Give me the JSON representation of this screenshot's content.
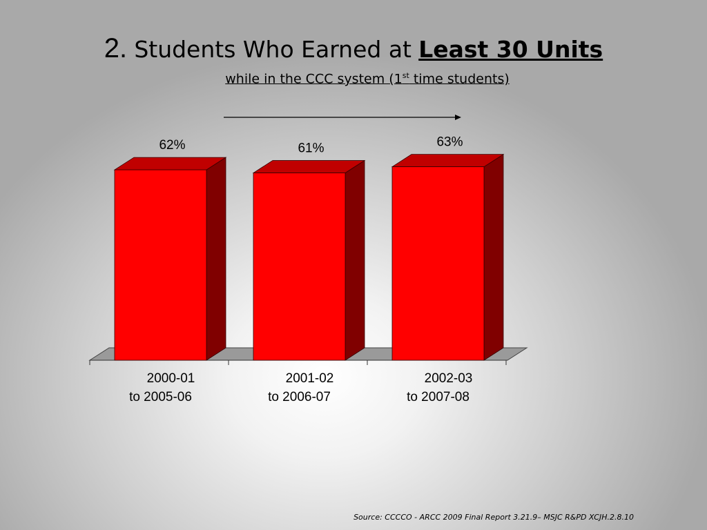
{
  "title": {
    "number": "2.",
    "text": "Students Who Earned at",
    "emphasis": "Least 30 Units"
  },
  "subtitle": {
    "before_sup": "while in the CCC system (1",
    "sup": "st",
    "after_sup": " time students)"
  },
  "source": "Source: CCCCO - ARCC 2009 Final Report 3.21.9– MSJC R&PD XCJH.2.8.10",
  "colors": {
    "bar_front": "#ff0000",
    "bar_side": "#800000",
    "bar_top": "#c00000",
    "floor": "#9a9a9a"
  },
  "chart_data": {
    "type": "bar",
    "categories": [
      [
        "2000-01",
        "to 2005-06"
      ],
      [
        "2001-02",
        "to 2006-07"
      ],
      [
        "2002-03",
        "to 2007-08"
      ]
    ],
    "values": [
      62,
      61,
      63
    ],
    "value_labels": [
      "62%",
      "61%",
      "63%"
    ],
    "ylabel": "",
    "xlabel": "",
    "style": "3d",
    "grid": false,
    "legend": "none"
  }
}
